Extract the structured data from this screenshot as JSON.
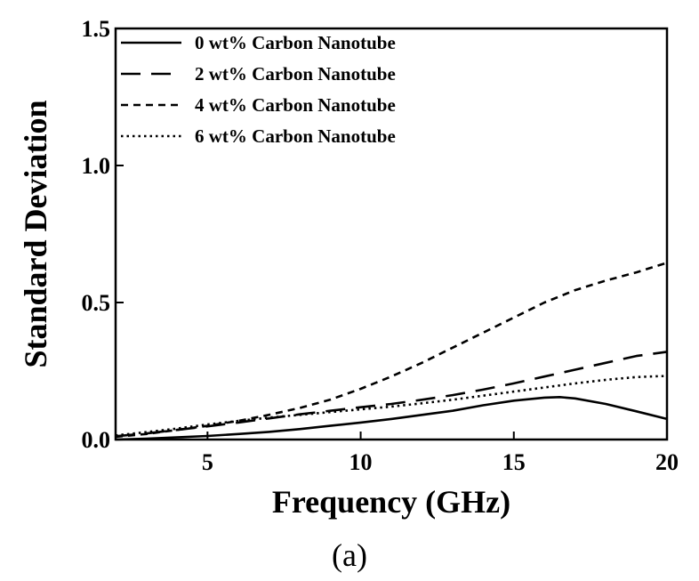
{
  "chart_data": {
    "type": "line",
    "xlabel": "Frequency (GHz)",
    "ylabel": "Standard Deviation",
    "xlim": [
      2,
      20
    ],
    "ylim": [
      0.0,
      1.5
    ],
    "x_ticks": [
      5,
      10,
      15,
      20
    ],
    "x_tick_labels": [
      "5",
      "10",
      "15",
      "20"
    ],
    "y_ticks": [
      0.0,
      0.5,
      1.0,
      1.5
    ],
    "y_tick_labels": [
      "0.0",
      "0.5",
      "1.0",
      "1.5"
    ],
    "grid": false,
    "legend_position": "top-left",
    "panel_label": "(a)",
    "series": [
      {
        "name": "0 wt% Carbon Nanotube",
        "style": "solid",
        "color": "#000000",
        "x": [
          2,
          3,
          4,
          5,
          6,
          7,
          8,
          9,
          10,
          11,
          12,
          13,
          14,
          15,
          16,
          16.5,
          17,
          18,
          19,
          20
        ],
        "y": [
          0.0,
          0.003,
          0.008,
          0.013,
          0.02,
          0.028,
          0.038,
          0.05,
          0.062,
          0.075,
          0.09,
          0.105,
          0.125,
          0.142,
          0.153,
          0.155,
          0.15,
          0.13,
          0.103,
          0.075
        ]
      },
      {
        "name": "2 wt% Carbon Nanotube",
        "style": "long-dash",
        "color": "#000000",
        "x": [
          2,
          3,
          4,
          5,
          6,
          7,
          8,
          9,
          10,
          11,
          12,
          13,
          14,
          15,
          16,
          17,
          18,
          19,
          20
        ],
        "y": [
          0.012,
          0.022,
          0.035,
          0.048,
          0.062,
          0.077,
          0.092,
          0.105,
          0.118,
          0.13,
          0.145,
          0.162,
          0.182,
          0.205,
          0.23,
          0.255,
          0.28,
          0.305,
          0.32
        ]
      },
      {
        "name": "4 wt% Carbon Nanotube",
        "style": "short-dash",
        "color": "#000000",
        "x": [
          2,
          3,
          4,
          5,
          6,
          7,
          8,
          9,
          10,
          11,
          12,
          13,
          14,
          15,
          16,
          17,
          18,
          19,
          20
        ],
        "y": [
          0.01,
          0.02,
          0.035,
          0.05,
          0.068,
          0.09,
          0.115,
          0.145,
          0.185,
          0.23,
          0.28,
          0.335,
          0.39,
          0.445,
          0.5,
          0.545,
          0.58,
          0.61,
          0.645
        ]
      },
      {
        "name": "6 wt% Carbon Nanotube",
        "style": "dotted",
        "color": "#000000",
        "x": [
          2,
          3,
          4,
          5,
          6,
          7,
          8,
          9,
          10,
          11,
          12,
          13,
          14,
          15,
          16,
          17,
          18,
          19,
          20
        ],
        "y": [
          0.015,
          0.027,
          0.04,
          0.055,
          0.068,
          0.08,
          0.09,
          0.1,
          0.11,
          0.12,
          0.132,
          0.145,
          0.16,
          0.175,
          0.19,
          0.205,
          0.218,
          0.228,
          0.232
        ]
      }
    ]
  }
}
